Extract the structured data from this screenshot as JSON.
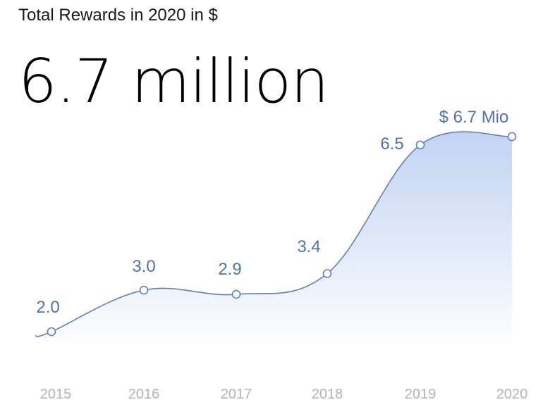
{
  "header": {
    "subtitle": "Total Rewards in 2020 in $",
    "headline": "6.7 million"
  },
  "chart_data": {
    "type": "area",
    "categories": [
      "2015",
      "2016",
      "2017",
      "2018",
      "2019",
      "2020"
    ],
    "values": [
      2.0,
      3.0,
      2.9,
      3.4,
      6.5,
      6.7
    ],
    "data_labels": [
      "2.0",
      "3.0",
      "2.9",
      "3.4",
      "6.5",
      "$ 6.7 Mio"
    ],
    "title": "Total Rewards in 2020 in $",
    "xlabel": "",
    "ylabel": "",
    "grid": false,
    "legend": "none",
    "colors": {
      "line": "#5f80c0",
      "label": "#4f72b8",
      "fill_top": "#c2d3f2",
      "fill_bottom": "#ffffff",
      "tick": "#b3b3b3"
    }
  }
}
